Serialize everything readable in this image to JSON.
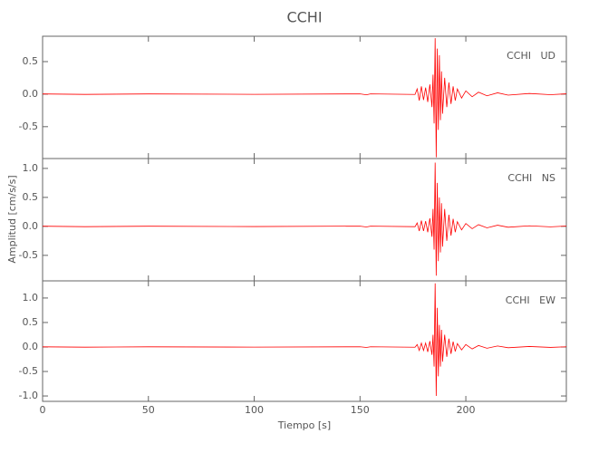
{
  "title": "CCHI",
  "y_label": "Amplitud [cm/s/s]",
  "x_label": "Tiempo [s]",
  "chart_data": [
    {
      "type": "line",
      "label": "CCHI   UD",
      "color": "#ff0000",
      "x": [
        0,
        20,
        50,
        100,
        150,
        153,
        155,
        176,
        177,
        178,
        179,
        180,
        181,
        182,
        183,
        184,
        184.5,
        185,
        185.5,
        186,
        186.5,
        187,
        187.5,
        188,
        188.5,
        189,
        190,
        191,
        192,
        193,
        194,
        195,
        196,
        198,
        200,
        203,
        206,
        210,
        215,
        220,
        230,
        240,
        247.5
      ],
      "values": [
        0.003,
        -0.004,
        0.003,
        -0.003,
        0.004,
        -0.01,
        0.004,
        -0.005,
        0.08,
        -0.1,
        0.12,
        -0.09,
        0.1,
        -0.12,
        0.15,
        -0.2,
        0.3,
        -0.45,
        0.86,
        -0.97,
        0.7,
        -0.55,
        0.6,
        -0.4,
        0.35,
        -0.3,
        0.25,
        -0.2,
        0.18,
        -0.15,
        0.12,
        -0.1,
        0.08,
        -0.06,
        0.05,
        -0.04,
        0.03,
        -0.025,
        0.02,
        -0.015,
        0.01,
        -0.008,
        0.005
      ],
      "xlim": [
        0,
        247.5
      ],
      "xticks": [
        0,
        50,
        100,
        150,
        200
      ],
      "ylim": [
        -0.99,
        0.89
      ],
      "yticks": [
        0.5,
        {
          "value": 0,
          "label": "0.0"
        },
        -0.5
      ]
    },
    {
      "type": "line",
      "label": "CCHI   NS",
      "color": "#ff0000",
      "x": [
        0,
        20,
        50,
        100,
        150,
        153,
        155,
        176,
        177,
        178,
        179,
        180,
        181,
        182,
        183,
        184,
        184.5,
        185,
        185.5,
        186,
        186.5,
        187,
        187.5,
        188,
        188.5,
        189,
        190,
        191,
        192,
        193,
        194,
        195,
        196,
        198,
        200,
        203,
        206,
        210,
        215,
        220,
        230,
        240,
        247.5
      ],
      "values": [
        0.003,
        -0.005,
        0.003,
        -0.003,
        0.004,
        -0.01,
        0.004,
        -0.005,
        0.06,
        -0.08,
        0.1,
        -0.08,
        0.09,
        -0.1,
        0.14,
        -0.18,
        0.3,
        -0.4,
        1.1,
        -0.85,
        0.75,
        -0.6,
        0.5,
        -0.45,
        0.4,
        -0.35,
        0.3,
        -0.25,
        0.2,
        -0.16,
        0.13,
        -0.1,
        0.08,
        -0.06,
        0.05,
        -0.04,
        0.03,
        -0.025,
        0.02,
        -0.015,
        0.01,
        -0.008,
        0.005
      ],
      "xlim": [
        0,
        247.5
      ],
      "xticks": [
        0,
        50,
        100,
        150,
        200
      ],
      "ylim": [
        -0.94,
        1.17
      ],
      "yticks": [
        {
          "value": 1,
          "label": "1.0"
        },
        0.5,
        {
          "value": 0,
          "label": "0.0"
        },
        -0.5
      ]
    },
    {
      "type": "line",
      "label": "CCHI   EW",
      "color": "#ff0000",
      "x": [
        0,
        20,
        50,
        100,
        150,
        153,
        155,
        176,
        177,
        178,
        179,
        180,
        181,
        182,
        183,
        184,
        184.5,
        185,
        185.5,
        186,
        186.5,
        187,
        187.5,
        188,
        188.5,
        189,
        190,
        191,
        192,
        193,
        194,
        195,
        196,
        198,
        200,
        203,
        206,
        210,
        215,
        220,
        230,
        240,
        247.5
      ],
      "values": [
        0.003,
        -0.004,
        0.003,
        -0.003,
        0.004,
        -0.01,
        0.004,
        -0.005,
        0.05,
        -0.07,
        0.08,
        -0.07,
        0.08,
        -0.1,
        0.12,
        -0.16,
        0.25,
        -0.4,
        1.3,
        -1.0,
        0.8,
        -0.6,
        0.45,
        -0.4,
        0.35,
        -0.3,
        0.25,
        -0.2,
        0.17,
        -0.14,
        0.11,
        -0.09,
        0.07,
        -0.06,
        0.05,
        -0.04,
        0.03,
        -0.025,
        0.02,
        -0.015,
        0.01,
        -0.008,
        0.005
      ],
      "xlim": [
        0,
        247.5
      ],
      "xticks": [
        0,
        50,
        100,
        150,
        200
      ],
      "ylim": [
        -1.11,
        1.35
      ],
      "yticks": [
        {
          "value": 1,
          "label": "1.0"
        },
        0.5,
        {
          "value": 0,
          "label": "0.0"
        },
        -0.5,
        {
          "value": -1,
          "label": "-1.0"
        }
      ]
    }
  ]
}
